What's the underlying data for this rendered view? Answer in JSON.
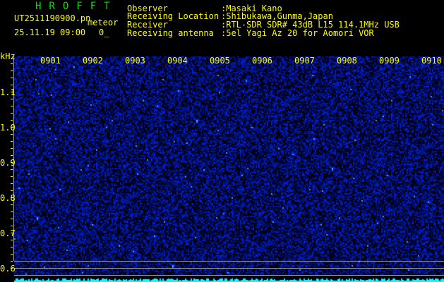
{
  "header": {
    "app_title": "HROFFT",
    "filename": "UT2511190900.pn",
    "mode": "meteor",
    "datetime": "25.11.19 09:00",
    "count": "0_",
    "info": [
      {
        "label": "Observer",
        "value": ":Masaki Kano"
      },
      {
        "label": "Receiving Location",
        "value": ":Shibukawa,Gunma,Japan"
      },
      {
        "label": "Receiver",
        "value": ":RTL-SDR SDR# 43dB L15 114.1MHz USB"
      },
      {
        "label": "Receiving antenna",
        "value": ":5el Yagi Az 20 for Aomori VOR"
      }
    ]
  },
  "spectrogram": {
    "unit": "kHz",
    "time_labels": [
      "0901",
      "0902",
      "0903",
      "0904",
      "0905",
      "0906",
      "0907",
      "0908",
      "0909",
      "0910"
    ],
    "freq_labels": [
      "1.1",
      "1.0",
      "0.9",
      "0.8",
      "0.7",
      "0.6"
    ],
    "colors": {
      "background": "#000010",
      "noise": "#1020c0",
      "bright": "#40a0ff",
      "level": "#00ffff",
      "axis": "#ffff00",
      "grid": "#a0a0a0"
    }
  }
}
